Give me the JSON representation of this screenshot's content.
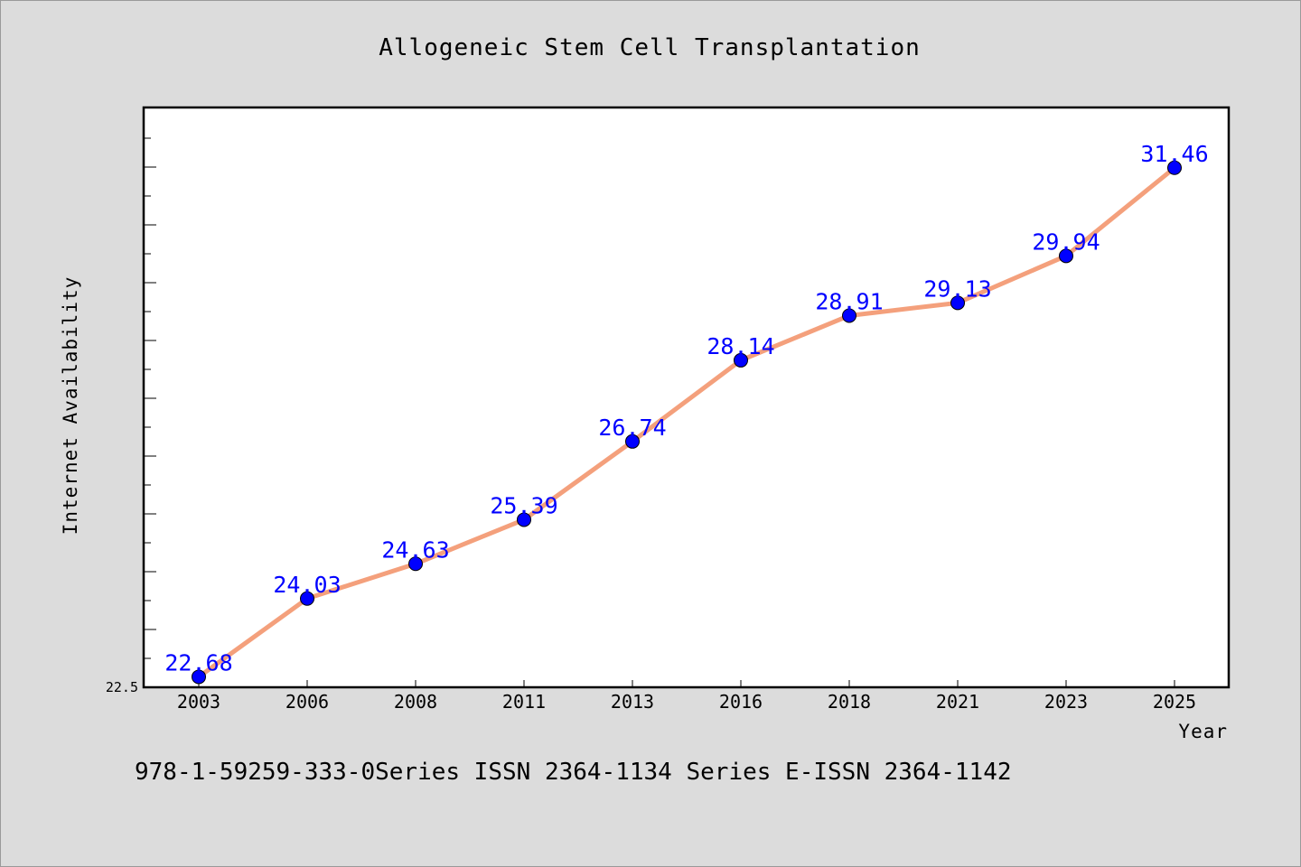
{
  "chart_data": {
    "type": "line",
    "title": "Allogeneic Stem Cell Transplantation",
    "xlabel": "Year",
    "ylabel": "Internet Availability",
    "categories": [
      "2003",
      "2006",
      "2008",
      "2011",
      "2013",
      "2016",
      "2018",
      "2021",
      "2023",
      "2025"
    ],
    "series": [
      {
        "values": [
          22.68,
          24.03,
          24.63,
          25.39,
          26.74,
          28.14,
          28.91,
          29.13,
          29.94,
          31.46
        ],
        "data_labels": [
          "22.68",
          "24.03",
          "24.63",
          "25.39",
          "26.74",
          "28.14",
          "28.91",
          "29.13",
          "29.94",
          "31.46"
        ]
      }
    ],
    "ylim": [
      22.5,
      32.5
    ],
    "y_min_label": "22.5",
    "grid": false,
    "line_color": "#f4a07c",
    "marker_color": "#0000ff",
    "label_color": "#0000ff"
  },
  "footnote": "978-1-59259-333-0Series ISSN 2364-1134 Series E-ISSN 2364-1142"
}
